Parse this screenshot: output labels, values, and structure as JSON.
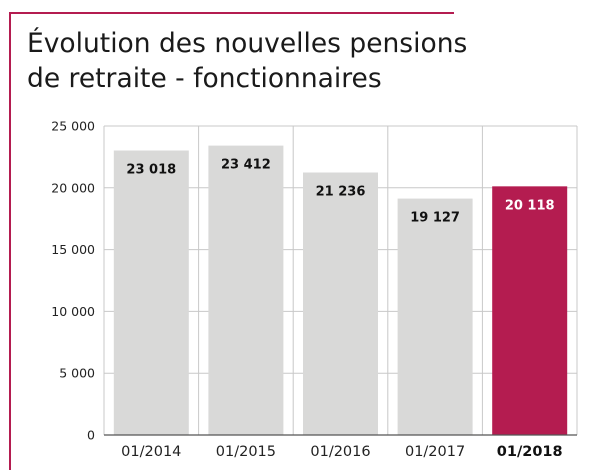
{
  "colors": {
    "accent": "#b41c50",
    "bar": "#d9d9d8",
    "grid": "#c8c8c8",
    "axis": "#555555"
  },
  "chart_data": {
    "type": "bar",
    "title": [
      "Évolution des nouvelles pensions",
      "de retraite - fonctionnaires"
    ],
    "categories": [
      "01/2014",
      "01/2015",
      "01/2016",
      "01/2017",
      "01/2018"
    ],
    "values": [
      23018,
      23412,
      21236,
      19127,
      20118
    ],
    "value_labels": [
      "23 018",
      "23 412",
      "21 236",
      "19 127",
      "20 118"
    ],
    "highlight_index": 4,
    "ylim": [
      0,
      25000
    ],
    "yticks": [
      0,
      5000,
      10000,
      15000,
      20000,
      25000
    ],
    "ytick_labels": [
      "0",
      "5 000",
      "10 000",
      "15 000",
      "20 000",
      "25 000"
    ],
    "grid": true,
    "legend": "none"
  }
}
